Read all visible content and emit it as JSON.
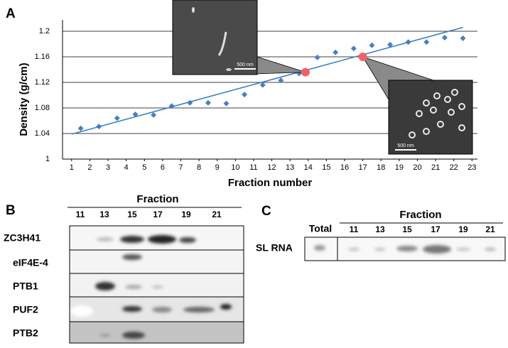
{
  "chart_data": {
    "type": "scatter",
    "x_label": "Fraction number",
    "y_label": "Density (g/cm)",
    "x": [
      1.5,
      2.5,
      3.5,
      4.5,
      5.5,
      6.5,
      7.5,
      8.5,
      9.5,
      10.5,
      11.5,
      12.5,
      13.5,
      14.5,
      15.5,
      16.5,
      17.5,
      18.5,
      19.5,
      20.5,
      21.5,
      22.5
    ],
    "values": [
      1.048,
      1.051,
      1.064,
      1.07,
      1.069,
      1.083,
      1.088,
      1.088,
      1.087,
      1.101,
      1.116,
      1.123,
      1.134,
      1.159,
      1.167,
      1.173,
      1.178,
      1.179,
      1.183,
      1.183,
      1.19,
      1.189
    ],
    "color": "#4a7fc1",
    "fit_line": {
      "x": [
        1,
        22.5
      ],
      "values": [
        1.039,
        1.206
      ],
      "color": "#2e7cc4"
    },
    "highlights": {
      "x": [
        13.85,
        17
      ],
      "values": [
        1.136,
        1.16
      ],
      "color": "#f4606a"
    },
    "xlim": [
      0.5,
      23.3
    ],
    "ylim": [
      1,
      1.2
    ],
    "xticks": [
      1,
      2,
      3,
      4,
      5,
      6,
      7,
      8,
      9,
      10,
      11,
      12,
      13,
      14,
      15,
      16,
      17,
      18,
      19,
      20,
      21,
      22,
      23
    ],
    "yticks": [
      1,
      1.04,
      1.08,
      1.12,
      1.16,
      1.2
    ],
    "grid": true,
    "insets": [
      {
        "scale_label": "500 nm"
      },
      {
        "scale_label": "500 nm"
      }
    ]
  },
  "panel_labels": [
    "A",
    "B",
    "C"
  ],
  "blot_b": {
    "header": "Fraction",
    "fractions": [
      "11",
      "13",
      "15",
      "17",
      "19",
      "21"
    ],
    "rows": [
      "ZC3H41",
      "eIF4E-4",
      "PTB1",
      "PUF2",
      "PTB2"
    ]
  },
  "blot_c": {
    "header": "Fraction",
    "total": "Total",
    "fractions": [
      "11",
      "13",
      "15",
      "17",
      "19",
      "21"
    ],
    "row": "SL RNA"
  }
}
